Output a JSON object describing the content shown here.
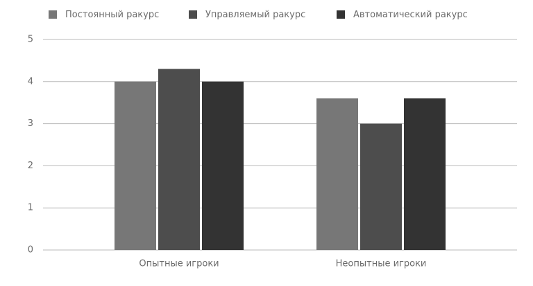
{
  "chart_data": {
    "type": "bar",
    "categories": [
      "Опытные игроки",
      "Неопытные игроки"
    ],
    "series": [
      {
        "name": "Постоянный ракурс",
        "color": "#777777",
        "values": [
          4,
          3.6
        ]
      },
      {
        "name": "Управляемый ракурс",
        "color": "#4d4d4d",
        "values": [
          4.3,
          3
        ]
      },
      {
        "name": "Автоматический ракурс",
        "color": "#333333",
        "values": [
          4,
          3.6
        ]
      }
    ],
    "ylim": [
      0,
      5
    ],
    "yticks": [
      0,
      1,
      2,
      3,
      4,
      5
    ],
    "grid": true,
    "legend": "top"
  }
}
